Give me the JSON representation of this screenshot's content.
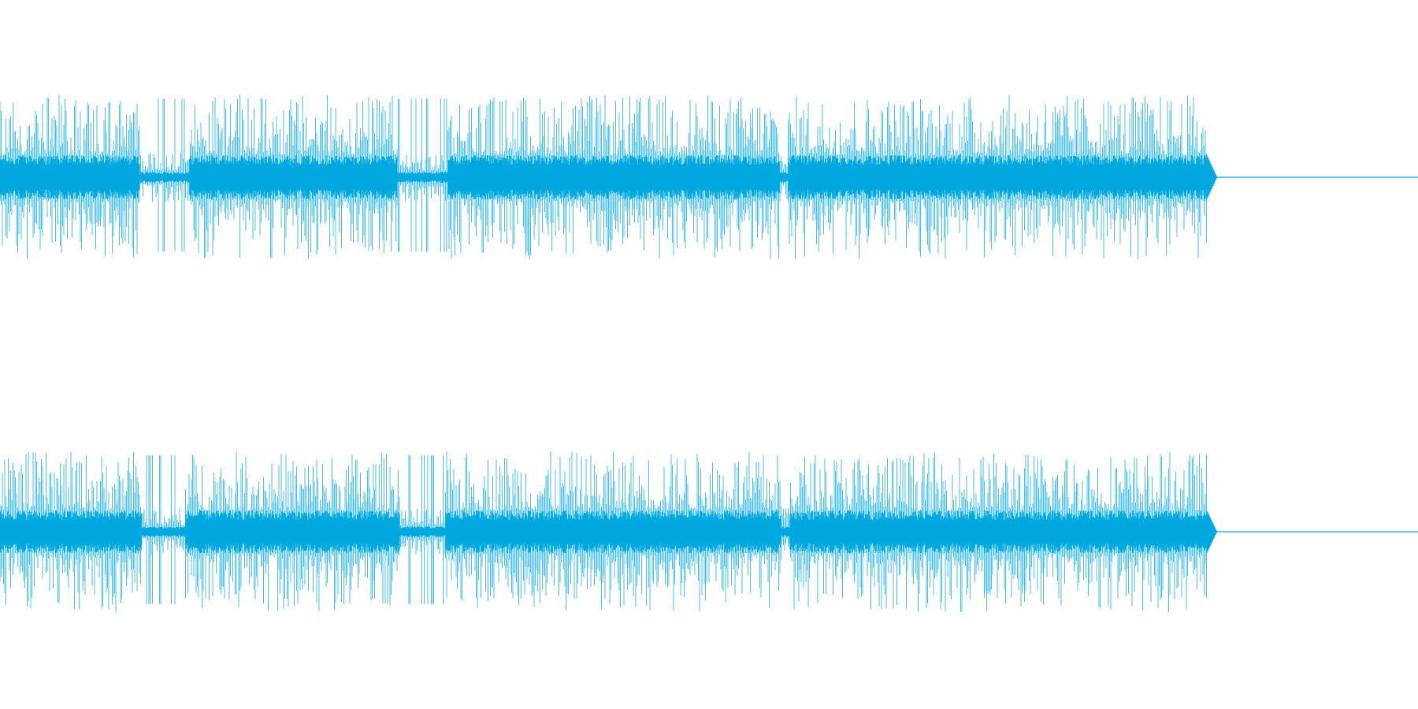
{
  "waveform": {
    "color": "#00a8e0",
    "channel_count": 2,
    "channels": [
      {
        "name": ""
      },
      {
        "name": ""
      }
    ]
  }
}
